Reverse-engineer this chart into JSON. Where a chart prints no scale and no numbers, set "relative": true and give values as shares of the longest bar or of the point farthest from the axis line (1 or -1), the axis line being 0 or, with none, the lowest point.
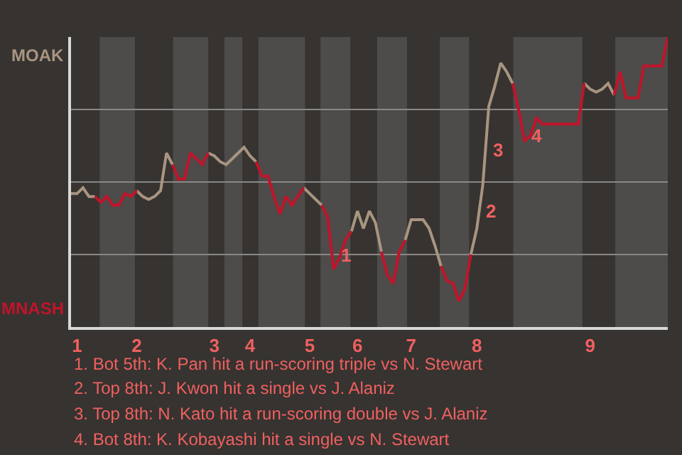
{
  "chart_data": {
    "type": "line",
    "relative": true,
    "categories": [
      null,
      "1",
      null,
      null,
      null,
      null,
      null,
      null,
      null,
      null,
      null,
      "2",
      null,
      null,
      null,
      null,
      null,
      null,
      null,
      null,
      null,
      null,
      null,
      null,
      "3",
      null,
      null,
      null,
      null,
      null,
      "4",
      null,
      null,
      null,
      null,
      null,
      null,
      null,
      null,
      null,
      "5",
      null,
      null,
      null,
      null,
      null,
      null,
      null,
      "6",
      null,
      null,
      null,
      null,
      null,
      null,
      null,
      null,
      "7",
      null,
      null,
      null,
      null,
      null,
      null,
      null,
      null,
      null,
      null,
      "8",
      null,
      null,
      null,
      null,
      null,
      null,
      null,
      null,
      null,
      null,
      null,
      null,
      null,
      null,
      null,
      null,
      null,
      null,
      "9",
      null,
      null,
      null,
      null,
      null,
      null,
      null,
      null,
      null,
      null,
      null,
      null,
      null
    ],
    "grid": "y",
    "marker": "none",
    "line_style": "solid",
    "series": [
      {
        "color": "#a89580",
        "values": [
          0.46,
          0.46,
          0.48,
          0.45,
          0.45,
          null,
          null,
          null,
          null,
          null,
          null,
          0.47,
          0.45,
          0.44,
          0.45,
          0.47,
          0.6,
          0.56,
          null,
          null,
          null,
          null,
          null,
          0.6,
          0.59,
          0.57,
          0.56,
          0.58,
          0.6,
          0.62,
          0.59,
          0.57,
          null,
          null,
          null,
          null,
          null,
          null,
          null,
          0.48,
          0.46,
          0.44,
          0.42,
          null,
          null,
          null,
          null,
          0.33,
          0.4,
          0.34,
          0.4,
          0.36,
          0.26,
          null,
          null,
          null,
          0.3,
          0.37,
          0.37,
          0.37,
          0.34,
          0.28,
          0.21,
          null,
          null,
          null,
          null,
          0.25,
          0.34,
          0.49,
          0.76,
          0.83,
          0.91,
          0.88,
          0.84,
          null,
          null,
          null,
          null,
          null,
          null,
          null,
          null,
          null,
          null,
          null,
          0.84,
          0.82,
          0.81,
          0.82,
          0.84,
          0.8,
          null,
          null,
          null,
          null,
          null,
          null,
          null,
          null,
          null
        ],
        "value_labels": [
          null,
          null,
          null,
          null,
          null,
          null,
          null,
          null,
          null,
          null,
          null,
          null,
          null,
          null,
          null,
          null,
          null,
          null,
          null,
          null,
          null,
          null,
          null,
          null,
          null,
          null,
          null,
          null,
          null,
          null,
          null,
          null,
          null,
          null,
          null,
          null,
          null,
          null,
          null,
          null,
          null,
          null,
          null,
          null,
          null,
          null,
          null,
          null,
          null,
          null,
          null,
          null,
          null,
          null,
          null,
          null,
          null,
          null,
          null,
          null,
          null,
          null,
          null,
          null,
          null,
          null,
          null,
          null,
          null,
          null,
          null,
          null,
          null,
          null,
          null,
          null,
          null,
          null,
          null,
          null,
          null,
          null,
          null,
          null,
          null,
          null,
          null,
          null,
          null,
          null,
          null,
          null,
          null,
          null,
          null,
          null,
          null,
          null,
          null,
          null,
          null
        ]
      },
      {
        "color": "#c0142a",
        "values": [
          null,
          null,
          null,
          null,
          0.45,
          0.43,
          0.45,
          0.42,
          0.42,
          0.46,
          0.45,
          0.47,
          null,
          null,
          null,
          null,
          null,
          0.56,
          0.51,
          0.51,
          0.6,
          0.58,
          0.56,
          0.6,
          null,
          null,
          null,
          null,
          null,
          null,
          null,
          0.57,
          0.52,
          0.52,
          0.45,
          0.39,
          0.45,
          0.42,
          0.45,
          0.48,
          null,
          null,
          0.42,
          0.38,
          0.2,
          0.24,
          0.3,
          0.33,
          null,
          null,
          null,
          null,
          0.26,
          0.18,
          0.15,
          0.26,
          0.3,
          null,
          null,
          null,
          null,
          null,
          0.21,
          0.16,
          0.15,
          0.09,
          0.13,
          0.25,
          null,
          null,
          null,
          null,
          null,
          null,
          0.84,
          0.75,
          0.64,
          0.66,
          0.72,
          0.7,
          0.7,
          0.7,
          0.7,
          0.7,
          0.7,
          0.7,
          0.84,
          null,
          null,
          null,
          null,
          0.8,
          0.88,
          0.79,
          0.79,
          0.79,
          0.9,
          0.9,
          0.9,
          0.9,
          1.0
        ],
        "value_labels": [
          null,
          null,
          null,
          null,
          null,
          null,
          null,
          null,
          null,
          null,
          null,
          null,
          null,
          null,
          null,
          null,
          null,
          null,
          null,
          null,
          null,
          null,
          null,
          null,
          null,
          null,
          null,
          null,
          null,
          null,
          null,
          null,
          null,
          null,
          null,
          null,
          null,
          null,
          null,
          null,
          null,
          null,
          null,
          null,
          null,
          null,
          null,
          null,
          null,
          null,
          null,
          null,
          null,
          null,
          null,
          null,
          null,
          null,
          null,
          null,
          null,
          null,
          null,
          null,
          null,
          null,
          null,
          null,
          null,
          null,
          null,
          null,
          null,
          null,
          null,
          null,
          null,
          null,
          null,
          null,
          null,
          null,
          null,
          null,
          null,
          null,
          null,
          null,
          null,
          null,
          null,
          null,
          null,
          null,
          null,
          null,
          null,
          null,
          null,
          null,
          null
        ]
      }
    ],
    "annotations": [
      "MOAK",
      "MNASH",
      "1",
      "2",
      "3",
      "4",
      "1. Bot 5th: K. Pan hit a run-scoring triple vs N. Stewart",
      "2. Top 8th: J. Kwon hit a single vs J. Alaniz",
      "3. Top 8th: N. Kato hit a run-scoring double vs J. Alaniz",
      "4. Bot 8th: K. Kobayashi hit a single vs N. Stewart"
    ]
  }
}
